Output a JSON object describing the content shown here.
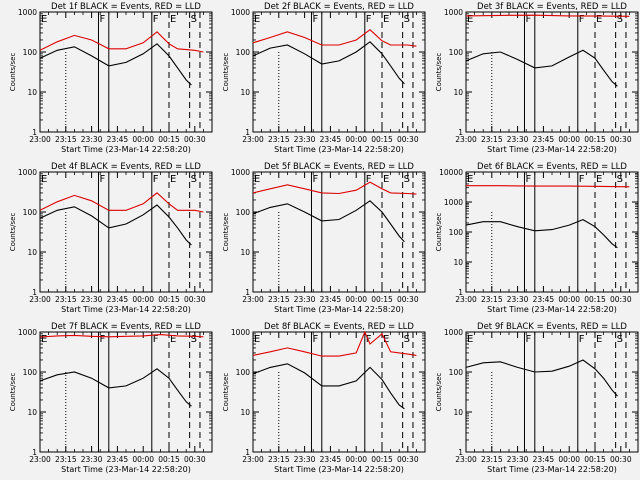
{
  "colors": {
    "events": "#000000",
    "lld": "#dd0000",
    "background": "#f2f2f2"
  },
  "chart_data": [
    {
      "type": "line",
      "title": "Det 1f BLACK = Events, RED = LLD",
      "xlabel": "Start Time (23-Mar-14 22:58:20)",
      "ylabel": "Counts/sec",
      "yscale": "log",
      "ylim": [
        1,
        1000
      ],
      "yticks": [
        "1",
        "10",
        "100",
        "1000"
      ],
      "xlim": [
        "23:00",
        "00:40"
      ],
      "xticks": [
        "23:00",
        "23:15",
        "23:30",
        "23:45",
        "00:00",
        "00:15",
        "00:30"
      ],
      "flags": [
        {
          "label": "E",
          "time": "23:00"
        },
        {
          "label": "F",
          "time": "23:34"
        },
        {
          "label": "F",
          "time": "00:05"
        },
        {
          "label": "E",
          "time": "00:15"
        },
        {
          "label": "S",
          "time": "00:27"
        }
      ],
      "series": [
        {
          "role": "lld",
          "x": [
            "23:00",
            "23:10",
            "23:20",
            "23:30",
            "23:40",
            "23:50",
            "00:00",
            "00:08",
            "00:15",
            "00:20",
            "00:30",
            "00:35"
          ],
          "y": [
            110,
            180,
            260,
            200,
            120,
            120,
            170,
            320,
            160,
            120,
            110,
            100
          ]
        },
        {
          "role": "events",
          "x": [
            "23:00",
            "23:10",
            "23:20",
            "23:30",
            "23:40",
            "23:50",
            "00:00",
            "00:08",
            "00:15",
            "00:20",
            "00:25",
            "00:28"
          ],
          "y": [
            70,
            110,
            135,
            80,
            45,
            55,
            90,
            160,
            80,
            40,
            20,
            15
          ]
        }
      ]
    },
    {
      "type": "line",
      "title": "Det 2f BLACK = Events, RED = LLD",
      "xlabel": "Start Time (23-Mar-14 22:58:20)",
      "ylabel": "Counts/sec",
      "yscale": "log",
      "ylim": [
        1,
        1000
      ],
      "yticks": [
        "1",
        "10",
        "100",
        "1000"
      ],
      "xlim": [
        "23:00",
        "00:40"
      ],
      "xticks": [
        "23:00",
        "23:15",
        "23:30",
        "23:45",
        "00:00",
        "00:15",
        "00:30"
      ],
      "flags": [
        {
          "label": "E",
          "time": "23:00"
        },
        {
          "label": "F",
          "time": "23:34"
        },
        {
          "label": "F",
          "time": "00:05"
        },
        {
          "label": "E",
          "time": "00:15"
        },
        {
          "label": "S",
          "time": "00:27"
        }
      ],
      "series": [
        {
          "role": "lld",
          "x": [
            "23:00",
            "23:10",
            "23:20",
            "23:30",
            "23:40",
            "23:50",
            "00:00",
            "00:08",
            "00:15",
            "00:20",
            "00:30",
            "00:35"
          ],
          "y": [
            170,
            230,
            320,
            230,
            150,
            150,
            200,
            360,
            190,
            150,
            150,
            140
          ]
        },
        {
          "role": "events",
          "x": [
            "23:00",
            "23:10",
            "23:20",
            "23:30",
            "23:40",
            "23:50",
            "00:00",
            "00:08",
            "00:15",
            "00:20",
            "00:25",
            "00:28"
          ],
          "y": [
            80,
            125,
            150,
            90,
            50,
            60,
            100,
            180,
            90,
            45,
            22,
            16
          ]
        }
      ]
    },
    {
      "type": "line",
      "title": "Det 3f BLACK = Events, RED = LLD",
      "xlabel": "Start Time (23-Mar-14 22:58:20)",
      "ylabel": "Counts/sec",
      "yscale": "log",
      "ylim": [
        1,
        1000
      ],
      "yticks": [
        "1",
        "10",
        "100",
        "1000"
      ],
      "xlim": [
        "23:00",
        "00:40"
      ],
      "xticks": [
        "23:00",
        "23:15",
        "23:30",
        "23:45",
        "00:00",
        "00:15",
        "00:30"
      ],
      "flags": [
        {
          "label": "E",
          "time": "23:00"
        },
        {
          "label": "F",
          "time": "23:34"
        },
        {
          "label": "F",
          "time": "00:05"
        },
        {
          "label": "E",
          "time": "00:15"
        },
        {
          "label": "S",
          "time": "00:27"
        }
      ],
      "series": [
        {
          "role": "lld",
          "x": [
            "23:00",
            "23:20",
            "23:40",
            "00:00",
            "00:20",
            "00:35"
          ],
          "y": [
            800,
            820,
            830,
            800,
            790,
            780
          ]
        },
        {
          "role": "events",
          "x": [
            "23:00",
            "23:10",
            "23:20",
            "23:30",
            "23:40",
            "23:50",
            "00:00",
            "00:08",
            "00:15",
            "00:20",
            "00:25",
            "00:28"
          ],
          "y": [
            60,
            90,
            100,
            65,
            40,
            45,
            75,
            110,
            70,
            35,
            18,
            14
          ]
        }
      ]
    },
    {
      "type": "line",
      "title": "Det 4f BLACK = Events, RED = LLD",
      "xlabel": "Start Time (23-Mar-14 22:58:20)",
      "ylabel": "Counts/sec",
      "yscale": "log",
      "ylim": [
        1,
        1000
      ],
      "yticks": [
        "1",
        "10",
        "100",
        "1000"
      ],
      "xlim": [
        "23:00",
        "00:40"
      ],
      "xticks": [
        "23:00",
        "23:15",
        "23:30",
        "23:45",
        "00:00",
        "00:15",
        "00:30"
      ],
      "flags": [
        {
          "label": "E",
          "time": "23:00"
        },
        {
          "label": "F",
          "time": "23:34"
        },
        {
          "label": "F",
          "time": "00:05"
        },
        {
          "label": "E",
          "time": "00:15"
        },
        {
          "label": "S",
          "time": "00:27"
        }
      ],
      "series": [
        {
          "role": "lld",
          "x": [
            "23:00",
            "23:10",
            "23:20",
            "23:30",
            "23:40",
            "23:50",
            "00:00",
            "00:08",
            "00:15",
            "00:20",
            "00:30",
            "00:35"
          ],
          "y": [
            110,
            180,
            260,
            190,
            110,
            110,
            160,
            300,
            160,
            110,
            110,
            100
          ]
        },
        {
          "role": "events",
          "x": [
            "23:00",
            "23:10",
            "23:20",
            "23:30",
            "23:40",
            "23:50",
            "00:00",
            "00:08",
            "00:15",
            "00:20",
            "00:25",
            "00:28"
          ],
          "y": [
            70,
            110,
            135,
            80,
            40,
            50,
            85,
            150,
            75,
            40,
            20,
            15
          ]
        }
      ]
    },
    {
      "type": "line",
      "title": "Det 5f BLACK = Events, RED = LLD",
      "xlabel": "Start Time (23-Mar-14 22:58:20)",
      "ylabel": "Counts/sec",
      "yscale": "log",
      "ylim": [
        1,
        1000
      ],
      "yticks": [
        "1",
        "10",
        "100",
        "1000"
      ],
      "xlim": [
        "23:00",
        "00:40"
      ],
      "xticks": [
        "23:00",
        "23:15",
        "23:30",
        "23:45",
        "00:00",
        "00:15",
        "00:30"
      ],
      "flags": [
        {
          "label": "E",
          "time": "23:00"
        },
        {
          "label": "F",
          "time": "23:34"
        },
        {
          "label": "F",
          "time": "00:05"
        },
        {
          "label": "E",
          "time": "00:15"
        },
        {
          "label": "S",
          "time": "00:27"
        }
      ],
      "series": [
        {
          "role": "lld",
          "x": [
            "23:00",
            "23:10",
            "23:20",
            "23:30",
            "23:40",
            "23:50",
            "00:00",
            "00:08",
            "00:15",
            "00:20",
            "00:30",
            "00:35"
          ],
          "y": [
            300,
            380,
            480,
            380,
            300,
            290,
            350,
            560,
            380,
            300,
            290,
            280
          ]
        },
        {
          "role": "events",
          "x": [
            "23:00",
            "23:10",
            "23:20",
            "23:30",
            "23:40",
            "23:50",
            "00:00",
            "00:08",
            "00:15",
            "00:20",
            "00:25",
            "00:28"
          ],
          "y": [
            90,
            130,
            160,
            100,
            60,
            65,
            110,
            190,
            100,
            50,
            25,
            18
          ]
        }
      ]
    },
    {
      "type": "line",
      "title": "Det 6f BLACK = Events, RED = LLD",
      "xlabel": "Start Time (23-Mar-14 22:58:20)",
      "ylabel": "Counts/sec",
      "yscale": "log",
      "ylim": [
        1,
        10000
      ],
      "yticks": [
        "1",
        "10",
        "100",
        "1000",
        "10000"
      ],
      "xlim": [
        "23:00",
        "00:40"
      ],
      "xticks": [
        "23:00",
        "23:15",
        "23:30",
        "23:45",
        "00:00",
        "00:15",
        "00:30"
      ],
      "flags": [
        {
          "label": "E",
          "time": "23:00"
        },
        {
          "label": "F",
          "time": "23:34"
        },
        {
          "label": "F",
          "time": "00:05"
        },
        {
          "label": "E",
          "time": "00:15"
        },
        {
          "label": "S",
          "time": "00:27"
        }
      ],
      "series": [
        {
          "role": "lld",
          "x": [
            "23:00",
            "23:20",
            "23:40",
            "00:00",
            "00:20",
            "00:35"
          ],
          "y": [
            3500,
            3500,
            3400,
            3400,
            3300,
            3200
          ]
        },
        {
          "role": "events",
          "x": [
            "23:00",
            "23:10",
            "23:20",
            "23:30",
            "23:40",
            "23:50",
            "00:00",
            "00:08",
            "00:15",
            "00:20",
            "00:25",
            "00:28"
          ],
          "y": [
            170,
            220,
            220,
            150,
            110,
            120,
            170,
            260,
            150,
            80,
            40,
            30
          ]
        }
      ]
    },
    {
      "type": "line",
      "title": "Det 7f BLACK = Events, RED = LLD",
      "xlabel": "Start Time (23-Mar-14 22:58:20)",
      "ylabel": "Counts/sec",
      "yscale": "log",
      "ylim": [
        1,
        1000
      ],
      "yticks": [
        "1",
        "10",
        "100",
        "1000"
      ],
      "xlim": [
        "23:00",
        "00:40"
      ],
      "xticks": [
        "23:00",
        "23:15",
        "23:30",
        "23:45",
        "00:00",
        "00:15",
        "00:30"
      ],
      "flags": [
        {
          "label": "E",
          "time": "23:00"
        },
        {
          "label": "F",
          "time": "23:34"
        },
        {
          "label": "F",
          "time": "00:05"
        },
        {
          "label": "E",
          "time": "00:15"
        },
        {
          "label": "S",
          "time": "00:27"
        }
      ],
      "series": [
        {
          "role": "lld",
          "x": [
            "23:00",
            "23:10",
            "23:20",
            "23:30",
            "23:40",
            "23:50",
            "00:00",
            "00:10",
            "00:20",
            "00:30",
            "00:35"
          ],
          "y": [
            750,
            800,
            820,
            780,
            760,
            780,
            800,
            860,
            800,
            780,
            760
          ]
        },
        {
          "role": "events",
          "x": [
            "23:00",
            "23:10",
            "23:20",
            "23:30",
            "23:40",
            "23:50",
            "00:00",
            "00:08",
            "00:15",
            "00:20",
            "00:25",
            "00:28"
          ],
          "y": [
            60,
            85,
            100,
            70,
            40,
            45,
            70,
            120,
            70,
            35,
            18,
            14
          ]
        }
      ]
    },
    {
      "type": "line",
      "title": "Det 8f BLACK = Events, RED = LLD",
      "xlabel": "Start Time (23-Mar-14 22:58:20)",
      "ylabel": "Counts/sec",
      "yscale": "log",
      "ylim": [
        1,
        1000
      ],
      "yticks": [
        "1",
        "10",
        "100",
        "1000"
      ],
      "xlim": [
        "23:00",
        "00:40"
      ],
      "xticks": [
        "23:00",
        "23:15",
        "23:30",
        "23:45",
        "00:00",
        "00:15",
        "00:30"
      ],
      "flags": [
        {
          "label": "E",
          "time": "23:00"
        },
        {
          "label": "F",
          "time": "23:34"
        },
        {
          "label": "F",
          "time": "00:05"
        },
        {
          "label": "E",
          "time": "00:15"
        },
        {
          "label": "S",
          "time": "00:27"
        }
      ],
      "series": [
        {
          "role": "lld",
          "x": [
            "23:00",
            "23:10",
            "23:20",
            "23:30",
            "23:40",
            "23:50",
            "00:00",
            "00:05",
            "00:08",
            "00:15",
            "00:20",
            "00:30",
            "00:35"
          ],
          "y": [
            260,
            320,
            400,
            320,
            250,
            250,
            300,
            1000,
            500,
            900,
            320,
            280,
            260
          ]
        },
        {
          "role": "events",
          "x": [
            "23:00",
            "23:10",
            "23:20",
            "23:30",
            "23:40",
            "23:50",
            "00:00",
            "00:08",
            "00:15",
            "00:20",
            "00:25",
            "00:28"
          ],
          "y": [
            90,
            130,
            160,
            95,
            45,
            45,
            60,
            130,
            65,
            30,
            15,
            12
          ]
        }
      ]
    },
    {
      "type": "line",
      "title": "Det 9f BLACK = Events, RED = LLD",
      "xlabel": "Start Time (23-Mar-14 22:58:20)",
      "ylabel": "Counts/sec",
      "yscale": "log",
      "ylim": [
        1,
        1000
      ],
      "yticks": [
        "1",
        "10",
        "100",
        "1000"
      ],
      "xlim": [
        "23:00",
        "00:40"
      ],
      "xticks": [
        "23:00",
        "23:15",
        "23:30",
        "23:45",
        "00:00",
        "00:15",
        "00:30"
      ],
      "flags": [
        {
          "label": "E",
          "time": "23:00"
        },
        {
          "label": "F",
          "time": "23:34"
        },
        {
          "label": "F",
          "time": "00:05"
        },
        {
          "label": "E",
          "time": "00:15"
        },
        {
          "label": "S",
          "time": "00:27"
        }
      ],
      "series": [
        {
          "role": "events",
          "x": [
            "23:00",
            "23:10",
            "23:20",
            "23:30",
            "23:40",
            "23:50",
            "00:00",
            "00:08",
            "00:15",
            "00:20",
            "00:25",
            "00:28"
          ],
          "y": [
            130,
            170,
            180,
            130,
            100,
            105,
            140,
            200,
            120,
            70,
            35,
            25
          ]
        }
      ]
    }
  ]
}
